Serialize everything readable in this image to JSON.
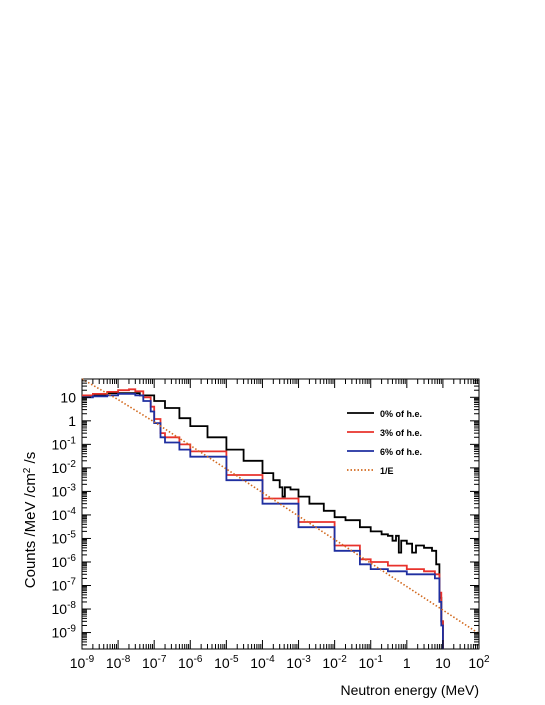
{
  "chart_data": {
    "type": "line",
    "xscale": "log",
    "yscale": "log",
    "xlim": [
      1e-09,
      100
    ],
    "ylim": [
      2e-10,
      60
    ],
    "xlabel": "Neutron energy (MeV)",
    "ylabel": {
      "pre": "Counts /MeV /cm",
      "sup": "2",
      "post": " /s"
    },
    "x_ticks": [
      {
        "value": 1e-09,
        "base": "10",
        "exp": "-9"
      },
      {
        "value": 1e-08,
        "base": "10",
        "exp": "-8"
      },
      {
        "value": 1e-07,
        "base": "10",
        "exp": "-7"
      },
      {
        "value": 1e-06,
        "base": "10",
        "exp": "-6"
      },
      {
        "value": 1e-05,
        "base": "10",
        "exp": "-5"
      },
      {
        "value": 0.0001,
        "base": "10",
        "exp": "-4"
      },
      {
        "value": 0.001,
        "base": "10",
        "exp": "-3"
      },
      {
        "value": 0.01,
        "base": "10",
        "exp": "-2"
      },
      {
        "value": 0.1,
        "base": "10",
        "exp": "-1"
      },
      {
        "value": 1,
        "base": "1",
        "exp": ""
      },
      {
        "value": 10,
        "base": "10",
        "exp": ""
      },
      {
        "value": 100,
        "base": "10",
        "exp": "2"
      }
    ],
    "y_ticks": [
      {
        "value": 10,
        "base": "10",
        "exp": ""
      },
      {
        "value": 1,
        "base": "1",
        "exp": ""
      },
      {
        "value": 0.1,
        "base": "10",
        "exp": "-1"
      },
      {
        "value": 0.01,
        "base": "10",
        "exp": "-2"
      },
      {
        "value": 0.001,
        "base": "10",
        "exp": "-3"
      },
      {
        "value": 0.0001,
        "base": "10",
        "exp": "-4"
      },
      {
        "value": 1e-05,
        "base": "10",
        "exp": "-5"
      },
      {
        "value": 1e-06,
        "base": "10",
        "exp": "-6"
      },
      {
        "value": 1e-07,
        "base": "10",
        "exp": "-7"
      },
      {
        "value": 1e-08,
        "base": "10",
        "exp": "-8"
      },
      {
        "value": 1e-09,
        "base": "10",
        "exp": "-9"
      }
    ],
    "legend_position": "top-right",
    "series": [
      {
        "name": "0% of h.e.",
        "color": "#000000",
        "style": "step",
        "points": [
          [
            1e-09,
            12
          ],
          [
            2e-09,
            13
          ],
          [
            5e-09,
            15
          ],
          [
            1e-08,
            15
          ],
          [
            2e-08,
            15
          ],
          [
            4e-08,
            12
          ],
          [
            1e-07,
            7
          ],
          [
            2e-07,
            3.5
          ],
          [
            5e-07,
            1.3
          ],
          [
            1e-06,
            0.6
          ],
          [
            3e-06,
            0.2
          ],
          [
            1e-05,
            0.06
          ],
          [
            3e-05,
            0.02
          ],
          [
            0.0001,
            0.006
          ],
          [
            0.0002,
            0.003
          ],
          [
            0.0003,
            0.0015
          ],
          [
            0.00036,
            0.0006
          ],
          [
            0.00042,
            0.0015
          ],
          [
            0.0006,
            0.0012
          ],
          [
            0.001,
            0.0006
          ],
          [
            0.002,
            0.0003
          ],
          [
            0.005,
            0.00015
          ],
          [
            0.01,
            8e-05
          ],
          [
            0.02,
            6e-05
          ],
          [
            0.05,
            3e-05
          ],
          [
            0.1,
            2e-05
          ],
          [
            0.2,
            1.5e-05
          ],
          [
            0.3,
            1.3e-05
          ],
          [
            0.4,
            8e-06
          ],
          [
            0.5,
            1.3e-05
          ],
          [
            0.6,
            2.5e-06
          ],
          [
            0.7,
            8e-06
          ],
          [
            1,
            6e-06
          ],
          [
            1.4,
            2.5e-06
          ],
          [
            1.8,
            5e-06
          ],
          [
            3,
            4e-06
          ],
          [
            5,
            3e-06
          ],
          [
            6.5,
            8e-07
          ],
          [
            8,
            3e-08
          ],
          [
            9,
            3e-09
          ],
          [
            10.0,
            2e-10
          ]
        ]
      },
      {
        "name": "3% of h.e.",
        "color": "#e8322c",
        "style": "step",
        "points": [
          [
            1e-09,
            12
          ],
          [
            2e-09,
            14
          ],
          [
            5e-09,
            17
          ],
          [
            1e-08,
            20
          ],
          [
            2e-08,
            22
          ],
          [
            3e-08,
            18
          ],
          [
            5e-08,
            10
          ],
          [
            8e-08,
            4
          ],
          [
            1e-07,
            1.2
          ],
          [
            1.5e-07,
            0.3
          ],
          [
            2e-07,
            0.2
          ],
          [
            5e-07,
            0.1
          ],
          [
            1e-06,
            0.05
          ],
          [
            1e-05,
            0.005
          ],
          [
            0.0001,
            0.0005
          ],
          [
            0.001,
            5e-05
          ],
          [
            0.01,
            5e-06
          ],
          [
            0.05,
            1.3e-06
          ],
          [
            0.1,
            1e-06
          ],
          [
            0.3,
            7e-07
          ],
          [
            1,
            5e-07
          ],
          [
            3,
            4e-07
          ],
          [
            6,
            3e-07
          ],
          [
            8,
            5e-08
          ],
          [
            9,
            3e-09
          ],
          [
            10.0,
            2e-10
          ]
        ]
      },
      {
        "name": "6% of h.e.",
        "color": "#1f2fa0",
        "style": "step",
        "points": [
          [
            1e-09,
            10
          ],
          [
            2e-09,
            11
          ],
          [
            5e-09,
            12
          ],
          [
            1e-08,
            14
          ],
          [
            2e-08,
            14
          ],
          [
            3e-08,
            12
          ],
          [
            5e-08,
            7
          ],
          [
            8e-08,
            2.5
          ],
          [
            1e-07,
            0.8
          ],
          [
            1.5e-07,
            0.2
          ],
          [
            2e-07,
            0.12
          ],
          [
            5e-07,
            0.06
          ],
          [
            1e-06,
            0.03
          ],
          [
            1e-05,
            0.003
          ],
          [
            0.0001,
            0.0003
          ],
          [
            0.001,
            3e-05
          ],
          [
            0.01,
            3e-06
          ],
          [
            0.05,
            8e-07
          ],
          [
            0.1,
            5e-07
          ],
          [
            0.3,
            4e-07
          ],
          [
            1,
            3e-07
          ],
          [
            3,
            3e-07
          ],
          [
            6,
            2e-07
          ],
          [
            8,
            2e-08
          ],
          [
            9,
            2e-09
          ],
          [
            10.0,
            2e-10
          ]
        ]
      },
      {
        "name": "1/E",
        "color": "#d2691e",
        "style": "dotted",
        "points": [
          [
            1e-09,
            60
          ],
          [
            1e-08,
            8
          ],
          [
            1e-07,
            0.9
          ],
          [
            1e-05,
            0.009
          ],
          [
            0.001,
            9e-05
          ],
          [
            0.1,
            9e-07
          ],
          [
            10.0,
            9e-09
          ],
          [
            100,
            9e-10
          ]
        ]
      }
    ]
  }
}
